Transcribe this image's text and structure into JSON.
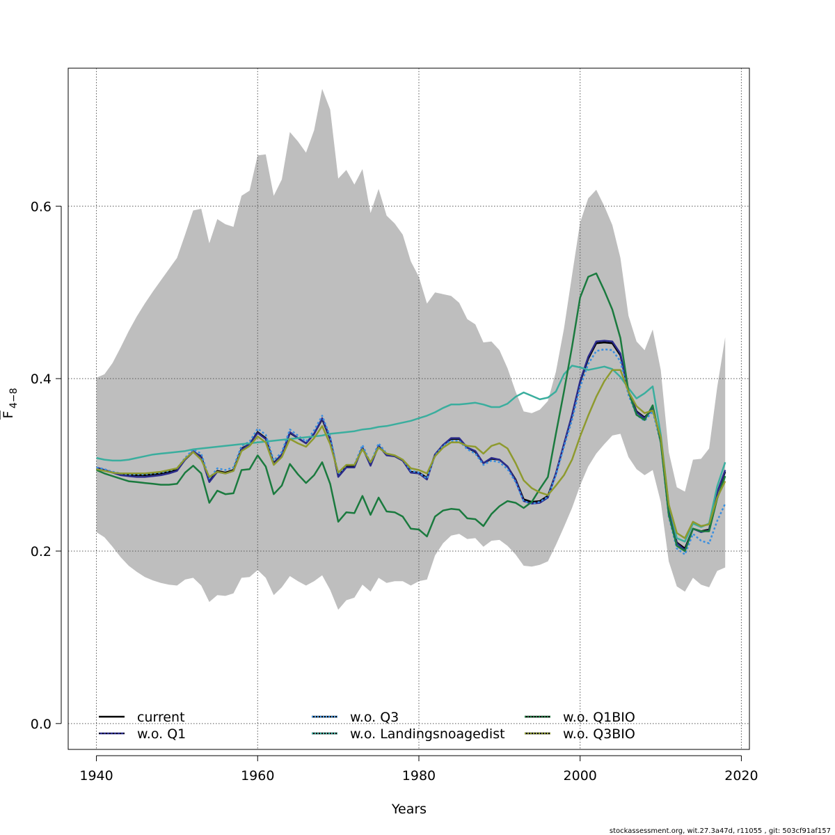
{
  "chart_data": {
    "type": "line",
    "xlabel": "Years",
    "ylabel": "F",
    "ylabel_subscript": "4−8",
    "xlim": [
      1936.5,
      2021
    ],
    "ylim": [
      -0.03,
      0.76
    ],
    "x_ticks": [
      1940,
      1960,
      1980,
      2000,
      2020
    ],
    "x_tick_labels": [
      "1940",
      "1960",
      "1980",
      "2000",
      "2020"
    ],
    "y_ticks": [
      0.0,
      0.2,
      0.4,
      0.6
    ],
    "y_tick_labels": [
      "0.0",
      "0.2",
      "0.4",
      "0.6"
    ],
    "grid": true,
    "legend_position": "bottom",
    "footer": "stockassessment.org, wit.27.3a47d, r11055 , git: 503cf91af157",
    "x": [
      1940,
      1941,
      1942,
      1943,
      1944,
      1945,
      1946,
      1947,
      1948,
      1949,
      1950,
      1951,
      1952,
      1953,
      1954,
      1955,
      1956,
      1957,
      1958,
      1959,
      1960,
      1961,
      1962,
      1963,
      1964,
      1965,
      1966,
      1967,
      1968,
      1969,
      1970,
      1971,
      1972,
      1973,
      1974,
      1975,
      1976,
      1977,
      1978,
      1979,
      1980,
      1981,
      1982,
      1983,
      1984,
      1985,
      1986,
      1987,
      1988,
      1989,
      1990,
      1991,
      1992,
      1993,
      1994,
      1995,
      1996,
      1997,
      1998,
      1999,
      2000,
      2001,
      2002,
      2003,
      2004,
      2005,
      2006,
      2007,
      2008,
      2009,
      2010,
      2011,
      2012,
      2013,
      2014,
      2015,
      2016,
      2017,
      2018
    ],
    "band": {
      "upper": [
        0.401,
        0.405,
        0.418,
        0.436,
        0.455,
        0.472,
        0.487,
        0.501,
        0.514,
        0.527,
        0.54,
        0.567,
        0.595,
        0.597,
        0.557,
        0.585,
        0.579,
        0.576,
        0.612,
        0.618,
        0.659,
        0.66,
        0.612,
        0.631,
        0.686,
        0.675,
        0.662,
        0.688,
        0.736,
        0.712,
        0.632,
        0.642,
        0.625,
        0.643,
        0.592,
        0.62,
        0.589,
        0.58,
        0.567,
        0.536,
        0.518,
        0.487,
        0.5,
        0.498,
        0.496,
        0.488,
        0.469,
        0.463,
        0.442,
        0.443,
        0.433,
        0.412,
        0.385,
        0.362,
        0.36,
        0.364,
        0.374,
        0.408,
        0.458,
        0.52,
        0.581,
        0.609,
        0.619,
        0.6,
        0.578,
        0.54,
        0.473,
        0.443,
        0.433,
        0.457,
        0.41,
        0.315,
        0.274,
        0.269,
        0.306,
        0.307,
        0.319,
        0.39,
        0.448
      ],
      "lower": [
        0.222,
        0.216,
        0.205,
        0.193,
        0.183,
        0.176,
        0.17,
        0.166,
        0.163,
        0.161,
        0.16,
        0.167,
        0.169,
        0.16,
        0.141,
        0.149,
        0.148,
        0.151,
        0.169,
        0.17,
        0.178,
        0.169,
        0.149,
        0.158,
        0.171,
        0.165,
        0.16,
        0.165,
        0.172,
        0.155,
        0.132,
        0.143,
        0.146,
        0.161,
        0.153,
        0.169,
        0.163,
        0.165,
        0.165,
        0.16,
        0.165,
        0.167,
        0.195,
        0.209,
        0.218,
        0.22,
        0.214,
        0.215,
        0.205,
        0.212,
        0.213,
        0.206,
        0.196,
        0.183,
        0.182,
        0.184,
        0.188,
        0.207,
        0.228,
        0.25,
        0.276,
        0.298,
        0.313,
        0.324,
        0.334,
        0.336,
        0.309,
        0.295,
        0.288,
        0.294,
        0.257,
        0.188,
        0.159,
        0.153,
        0.169,
        0.161,
        0.158,
        0.177,
        0.181
      ]
    },
    "series": [
      {
        "name": "current",
        "color": "#000000",
        "dash": "",
        "values": [
          0.296,
          0.294,
          0.291,
          0.289,
          0.288,
          0.288,
          0.288,
          0.289,
          0.29,
          0.292,
          0.295,
          0.306,
          0.315,
          0.31,
          0.281,
          0.293,
          0.291,
          0.294,
          0.319,
          0.324,
          0.338,
          0.331,
          0.302,
          0.312,
          0.337,
          0.331,
          0.325,
          0.336,
          0.353,
          0.33,
          0.287,
          0.298,
          0.298,
          0.32,
          0.3,
          0.322,
          0.312,
          0.31,
          0.305,
          0.292,
          0.291,
          0.285,
          0.312,
          0.323,
          0.33,
          0.33,
          0.32,
          0.315,
          0.302,
          0.307,
          0.306,
          0.298,
          0.283,
          0.26,
          0.257,
          0.258,
          0.264,
          0.29,
          0.324,
          0.357,
          0.396,
          0.423,
          0.441,
          0.442,
          0.441,
          0.427,
          0.385,
          0.362,
          0.355,
          0.365,
          0.33,
          0.246,
          0.21,
          0.203,
          0.226,
          0.223,
          0.225,
          0.268,
          0.292
        ]
      },
      {
        "name": "w.o. Q1",
        "color": "#2b2b8c",
        "dash": "",
        "values": [
          0.297,
          0.294,
          0.291,
          0.288,
          0.287,
          0.286,
          0.286,
          0.287,
          0.288,
          0.29,
          0.293,
          0.306,
          0.316,
          0.309,
          0.28,
          0.292,
          0.29,
          0.293,
          0.318,
          0.324,
          0.337,
          0.33,
          0.301,
          0.312,
          0.338,
          0.331,
          0.325,
          0.336,
          0.354,
          0.331,
          0.286,
          0.297,
          0.297,
          0.32,
          0.299,
          0.322,
          0.311,
          0.31,
          0.305,
          0.291,
          0.29,
          0.283,
          0.312,
          0.323,
          0.331,
          0.331,
          0.32,
          0.316,
          0.302,
          0.308,
          0.306,
          0.298,
          0.282,
          0.258,
          0.255,
          0.256,
          0.262,
          0.29,
          0.324,
          0.358,
          0.397,
          0.425,
          0.443,
          0.444,
          0.443,
          0.429,
          0.385,
          0.361,
          0.354,
          0.365,
          0.33,
          0.245,
          0.209,
          0.201,
          0.226,
          0.222,
          0.224,
          0.268,
          0.294
        ]
      },
      {
        "name": "w.o. Q3",
        "color": "#3a8fe0",
        "dash": "3,3",
        "values": [
          0.297,
          0.295,
          0.292,
          0.29,
          0.289,
          0.289,
          0.289,
          0.29,
          0.291,
          0.293,
          0.296,
          0.308,
          0.318,
          0.313,
          0.284,
          0.296,
          0.294,
          0.297,
          0.322,
          0.327,
          0.342,
          0.335,
          0.305,
          0.315,
          0.341,
          0.334,
          0.327,
          0.34,
          0.357,
          0.333,
          0.289,
          0.3,
          0.3,
          0.323,
          0.302,
          0.325,
          0.313,
          0.311,
          0.306,
          0.293,
          0.291,
          0.284,
          0.311,
          0.322,
          0.328,
          0.328,
          0.318,
          0.313,
          0.3,
          0.305,
          0.303,
          0.295,
          0.28,
          0.258,
          0.255,
          0.257,
          0.263,
          0.288,
          0.321,
          0.352,
          0.39,
          0.417,
          0.432,
          0.434,
          0.433,
          0.42,
          0.381,
          0.358,
          0.351,
          0.362,
          0.326,
          0.24,
          0.203,
          0.196,
          0.22,
          0.212,
          0.209,
          0.235,
          0.255
        ]
      },
      {
        "name": "w.o. Landingsnoagedist",
        "color": "#3aae9e",
        "dash": "",
        "values": [
          0.308,
          0.306,
          0.305,
          0.305,
          0.306,
          0.308,
          0.31,
          0.312,
          0.313,
          0.314,
          0.315,
          0.316,
          0.318,
          0.319,
          0.32,
          0.321,
          0.322,
          0.323,
          0.324,
          0.325,
          0.326,
          0.327,
          0.328,
          0.329,
          0.33,
          0.331,
          0.332,
          0.333,
          0.334,
          0.336,
          0.337,
          0.338,
          0.339,
          0.341,
          0.342,
          0.344,
          0.345,
          0.347,
          0.349,
          0.351,
          0.354,
          0.357,
          0.361,
          0.366,
          0.37,
          0.37,
          0.371,
          0.372,
          0.37,
          0.367,
          0.367,
          0.371,
          0.379,
          0.384,
          0.38,
          0.376,
          0.378,
          0.385,
          0.405,
          0.415,
          0.413,
          0.41,
          0.412,
          0.414,
          0.411,
          0.402,
          0.389,
          0.377,
          0.383,
          0.391,
          0.335,
          0.254,
          0.215,
          0.211,
          0.232,
          0.228,
          0.232,
          0.275,
          0.303
        ]
      },
      {
        "name": "w.o. Q1BIO",
        "color": "#1a7a3e",
        "dash": "",
        "values": [
          0.294,
          0.29,
          0.287,
          0.284,
          0.281,
          0.28,
          0.279,
          0.278,
          0.277,
          0.277,
          0.278,
          0.291,
          0.299,
          0.29,
          0.256,
          0.27,
          0.266,
          0.267,
          0.294,
          0.295,
          0.311,
          0.298,
          0.266,
          0.276,
          0.301,
          0.289,
          0.279,
          0.288,
          0.303,
          0.278,
          0.234,
          0.245,
          0.244,
          0.264,
          0.242,
          0.262,
          0.246,
          0.245,
          0.24,
          0.226,
          0.225,
          0.217,
          0.24,
          0.247,
          0.249,
          0.248,
          0.238,
          0.237,
          0.229,
          0.243,
          0.252,
          0.258,
          0.256,
          0.25,
          0.257,
          0.272,
          0.286,
          0.336,
          0.385,
          0.437,
          0.494,
          0.518,
          0.522,
          0.502,
          0.48,
          0.447,
          0.385,
          0.358,
          0.352,
          0.369,
          0.326,
          0.242,
          0.206,
          0.2,
          0.226,
          0.223,
          0.223,
          0.261,
          0.287
        ]
      },
      {
        "name": "w.o. Q3BIO",
        "color": "#8e9a2e",
        "dash": "",
        "values": [
          0.295,
          0.293,
          0.291,
          0.29,
          0.29,
          0.29,
          0.29,
          0.291,
          0.292,
          0.294,
          0.296,
          0.307,
          0.315,
          0.306,
          0.286,
          0.292,
          0.29,
          0.293,
          0.316,
          0.322,
          0.333,
          0.326,
          0.3,
          0.309,
          0.33,
          0.325,
          0.321,
          0.331,
          0.345,
          0.324,
          0.291,
          0.3,
          0.3,
          0.318,
          0.303,
          0.32,
          0.313,
          0.311,
          0.306,
          0.296,
          0.294,
          0.29,
          0.31,
          0.32,
          0.326,
          0.326,
          0.322,
          0.321,
          0.313,
          0.322,
          0.325,
          0.319,
          0.302,
          0.282,
          0.273,
          0.268,
          0.265,
          0.276,
          0.288,
          0.306,
          0.333,
          0.357,
          0.379,
          0.397,
          0.41,
          0.41,
          0.385,
          0.368,
          0.36,
          0.363,
          0.332,
          0.254,
          0.221,
          0.215,
          0.234,
          0.229,
          0.231,
          0.262,
          0.281
        ]
      }
    ]
  }
}
